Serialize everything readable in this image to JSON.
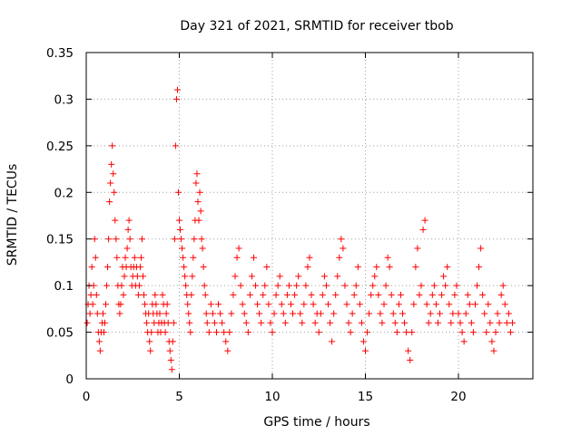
{
  "chart_data": {
    "type": "scatter",
    "title": "Day 321 of 2021, SRMTID for receiver tbob",
    "xlabel": "GPS time / hours",
    "ylabel": "SRMTID / TECUs",
    "xlim": [
      0,
      24
    ],
    "ylim": [
      0,
      0.35
    ],
    "xticks": [
      0,
      5,
      10,
      15,
      20
    ],
    "xtick_labels": [
      "0",
      "5",
      "10",
      "15",
      "20"
    ],
    "yticks": [
      0,
      0.05,
      0.1,
      0.15,
      0.2,
      0.25,
      0.3,
      0.35
    ],
    "ytick_labels": [
      "0",
      "0.05",
      "0.1",
      "0.15",
      "0.2",
      "0.25",
      "0.3",
      "0.35"
    ],
    "grid": true,
    "marker": "+",
    "color": "#ff0000",
    "series": [
      {
        "name": "SRMTID",
        "points": [
          [
            0.05,
            0.06
          ],
          [
            0.1,
            0.08
          ],
          [
            0.15,
            0.1
          ],
          [
            0.2,
            0.07
          ],
          [
            0.25,
            0.09
          ],
          [
            0.3,
            0.12
          ],
          [
            0.35,
            0.08
          ],
          [
            0.4,
            0.1
          ],
          [
            0.45,
            0.15
          ],
          [
            0.5,
            0.13
          ],
          [
            0.55,
            0.09
          ],
          [
            0.6,
            0.07
          ],
          [
            0.65,
            0.05
          ],
          [
            0.7,
            0.04
          ],
          [
            0.75,
            0.03
          ],
          [
            0.8,
            0.05
          ],
          [
            0.85,
            0.06
          ],
          [
            0.9,
            0.07
          ],
          [
            0.95,
            0.05
          ],
          [
            1.0,
            0.06
          ],
          [
            1.05,
            0.08
          ],
          [
            1.1,
            0.1
          ],
          [
            1.15,
            0.12
          ],
          [
            1.2,
            0.15
          ],
          [
            1.25,
            0.19
          ],
          [
            1.3,
            0.21
          ],
          [
            1.35,
            0.23
          ],
          [
            1.4,
            0.25
          ],
          [
            1.45,
            0.22
          ],
          [
            1.5,
            0.2
          ],
          [
            1.55,
            0.17
          ],
          [
            1.6,
            0.15
          ],
          [
            1.65,
            0.13
          ],
          [
            1.7,
            0.1
          ],
          [
            1.75,
            0.08
          ],
          [
            1.8,
            0.07
          ],
          [
            1.85,
            0.08
          ],
          [
            1.9,
            0.1
          ],
          [
            1.95,
            0.12
          ],
          [
            2.0,
            0.09
          ],
          [
            2.05,
            0.11
          ],
          [
            2.1,
            0.13
          ],
          [
            2.15,
            0.12
          ],
          [
            2.2,
            0.14
          ],
          [
            2.25,
            0.16
          ],
          [
            2.3,
            0.17
          ],
          [
            2.35,
            0.15
          ],
          [
            2.4,
            0.12
          ],
          [
            2.45,
            0.1
          ],
          [
            2.5,
            0.11
          ],
          [
            2.55,
            0.12
          ],
          [
            2.6,
            0.13
          ],
          [
            2.65,
            0.1
          ],
          [
            2.7,
            0.12
          ],
          [
            2.75,
            0.11
          ],
          [
            2.8,
            0.09
          ],
          [
            2.85,
            0.1
          ],
          [
            2.9,
            0.12
          ],
          [
            2.95,
            0.13
          ],
          [
            3.0,
            0.15
          ],
          [
            3.05,
            0.11
          ],
          [
            3.1,
            0.09
          ],
          [
            3.15,
            0.08
          ],
          [
            3.2,
            0.07
          ],
          [
            3.25,
            0.06
          ],
          [
            3.3,
            0.05
          ],
          [
            3.35,
            0.07
          ],
          [
            3.4,
            0.04
          ],
          [
            3.45,
            0.03
          ],
          [
            3.5,
            0.05
          ],
          [
            3.55,
            0.08
          ],
          [
            3.6,
            0.07
          ],
          [
            3.65,
            0.06
          ],
          [
            3.7,
            0.09
          ],
          [
            3.75,
            0.08
          ],
          [
            3.8,
            0.07
          ],
          [
            3.85,
            0.05
          ],
          [
            3.9,
            0.06
          ],
          [
            3.95,
            0.07
          ],
          [
            4.0,
            0.05
          ],
          [
            4.05,
            0.06
          ],
          [
            4.1,
            0.09
          ],
          [
            4.15,
            0.08
          ],
          [
            4.2,
            0.06
          ],
          [
            4.25,
            0.05
          ],
          [
            4.3,
            0.07
          ],
          [
            4.35,
            0.08
          ],
          [
            4.4,
            0.06
          ],
          [
            4.45,
            0.04
          ],
          [
            4.5,
            0.03
          ],
          [
            4.55,
            0.02
          ],
          [
            4.6,
            0.01
          ],
          [
            4.65,
            0.04
          ],
          [
            4.7,
            0.06
          ],
          [
            4.75,
            0.15
          ],
          [
            4.8,
            0.25
          ],
          [
            4.85,
            0.3
          ],
          [
            4.9,
            0.31
          ],
          [
            4.95,
            0.2
          ],
          [
            5.0,
            0.17
          ],
          [
            5.05,
            0.16
          ],
          [
            5.1,
            0.15
          ],
          [
            5.15,
            0.14
          ],
          [
            5.2,
            0.13
          ],
          [
            5.25,
            0.12
          ],
          [
            5.3,
            0.11
          ],
          [
            5.35,
            0.1
          ],
          [
            5.4,
            0.09
          ],
          [
            5.45,
            0.08
          ],
          [
            5.5,
            0.07
          ],
          [
            5.55,
            0.06
          ],
          [
            5.6,
            0.05
          ],
          [
            5.65,
            0.09
          ],
          [
            5.7,
            0.11
          ],
          [
            5.75,
            0.13
          ],
          [
            5.8,
            0.15
          ],
          [
            5.85,
            0.17
          ],
          [
            5.9,
            0.21
          ],
          [
            5.95,
            0.22
          ],
          [
            6.0,
            0.19
          ],
          [
            6.05,
            0.17
          ],
          [
            6.1,
            0.2
          ],
          [
            6.15,
            0.18
          ],
          [
            6.2,
            0.15
          ],
          [
            6.25,
            0.14
          ],
          [
            6.3,
            0.12
          ],
          [
            6.35,
            0.1
          ],
          [
            6.4,
            0.09
          ],
          [
            6.45,
            0.07
          ],
          [
            6.5,
            0.06
          ],
          [
            6.6,
            0.05
          ],
          [
            6.7,
            0.08
          ],
          [
            6.8,
            0.07
          ],
          [
            6.9,
            0.06
          ],
          [
            7.0,
            0.05
          ],
          [
            7.1,
            0.08
          ],
          [
            7.2,
            0.07
          ],
          [
            7.3,
            0.06
          ],
          [
            7.4,
            0.05
          ],
          [
            7.5,
            0.04
          ],
          [
            7.6,
            0.03
          ],
          [
            7.7,
            0.05
          ],
          [
            7.8,
            0.07
          ],
          [
            7.9,
            0.09
          ],
          [
            8.0,
            0.11
          ],
          [
            8.1,
            0.13
          ],
          [
            8.2,
            0.14
          ],
          [
            8.3,
            0.1
          ],
          [
            8.4,
            0.08
          ],
          [
            8.5,
            0.07
          ],
          [
            8.6,
            0.06
          ],
          [
            8.7,
            0.05
          ],
          [
            8.8,
            0.09
          ],
          [
            8.9,
            0.11
          ],
          [
            9.0,
            0.13
          ],
          [
            9.1,
            0.1
          ],
          [
            9.2,
            0.08
          ],
          [
            9.3,
            0.07
          ],
          [
            9.4,
            0.06
          ],
          [
            9.5,
            0.09
          ],
          [
            9.6,
            0.1
          ],
          [
            9.7,
            0.12
          ],
          [
            9.8,
            0.08
          ],
          [
            9.9,
            0.06
          ],
          [
            10.0,
            0.05
          ],
          [
            10.1,
            0.07
          ],
          [
            10.2,
            0.09
          ],
          [
            10.3,
            0.1
          ],
          [
            10.4,
            0.11
          ],
          [
            10.5,
            0.08
          ],
          [
            10.6,
            0.07
          ],
          [
            10.7,
            0.06
          ],
          [
            10.8,
            0.09
          ],
          [
            10.9,
            0.1
          ],
          [
            11.0,
            0.08
          ],
          [
            11.1,
            0.07
          ],
          [
            11.2,
            0.09
          ],
          [
            11.3,
            0.1
          ],
          [
            11.4,
            0.11
          ],
          [
            11.5,
            0.07
          ],
          [
            11.6,
            0.06
          ],
          [
            11.7,
            0.08
          ],
          [
            11.8,
            0.1
          ],
          [
            11.9,
            0.12
          ],
          [
            12.0,
            0.13
          ],
          [
            12.1,
            0.09
          ],
          [
            12.2,
            0.08
          ],
          [
            12.3,
            0.06
          ],
          [
            12.4,
            0.07
          ],
          [
            12.5,
            0.05
          ],
          [
            12.6,
            0.07
          ],
          [
            12.7,
            0.09
          ],
          [
            12.8,
            0.11
          ],
          [
            12.9,
            0.1
          ],
          [
            13.0,
            0.08
          ],
          [
            13.1,
            0.06
          ],
          [
            13.2,
            0.04
          ],
          [
            13.3,
            0.07
          ],
          [
            13.4,
            0.09
          ],
          [
            13.5,
            0.11
          ],
          [
            13.6,
            0.13
          ],
          [
            13.7,
            0.15
          ],
          [
            13.8,
            0.14
          ],
          [
            13.9,
            0.1
          ],
          [
            14.0,
            0.08
          ],
          [
            14.1,
            0.06
          ],
          [
            14.2,
            0.05
          ],
          [
            14.3,
            0.07
          ],
          [
            14.4,
            0.09
          ],
          [
            14.5,
            0.1
          ],
          [
            14.6,
            0.12
          ],
          [
            14.7,
            0.08
          ],
          [
            14.8,
            0.06
          ],
          [
            14.9,
            0.04
          ],
          [
            15.0,
            0.03
          ],
          [
            15.1,
            0.05
          ],
          [
            15.2,
            0.07
          ],
          [
            15.3,
            0.09
          ],
          [
            15.4,
            0.1
          ],
          [
            15.5,
            0.11
          ],
          [
            15.6,
            0.12
          ],
          [
            15.7,
            0.09
          ],
          [
            15.8,
            0.07
          ],
          [
            15.9,
            0.06
          ],
          [
            16.0,
            0.08
          ],
          [
            16.1,
            0.1
          ],
          [
            16.2,
            0.13
          ],
          [
            16.3,
            0.12
          ],
          [
            16.4,
            0.09
          ],
          [
            16.5,
            0.07
          ],
          [
            16.6,
            0.06
          ],
          [
            16.7,
            0.05
          ],
          [
            16.8,
            0.08
          ],
          [
            16.9,
            0.09
          ],
          [
            17.0,
            0.07
          ],
          [
            17.1,
            0.06
          ],
          [
            17.2,
            0.05
          ],
          [
            17.3,
            0.03
          ],
          [
            17.4,
            0.02
          ],
          [
            17.5,
            0.05
          ],
          [
            17.6,
            0.08
          ],
          [
            17.7,
            0.12
          ],
          [
            17.8,
            0.14
          ],
          [
            17.9,
            0.09
          ],
          [
            18.0,
            0.1
          ],
          [
            18.1,
            0.16
          ],
          [
            18.2,
            0.17
          ],
          [
            18.3,
            0.08
          ],
          [
            18.4,
            0.06
          ],
          [
            18.5,
            0.07
          ],
          [
            18.6,
            0.09
          ],
          [
            18.7,
            0.1
          ],
          [
            18.8,
            0.08
          ],
          [
            18.9,
            0.06
          ],
          [
            19.0,
            0.07
          ],
          [
            19.1,
            0.09
          ],
          [
            19.2,
            0.11
          ],
          [
            19.3,
            0.1
          ],
          [
            19.4,
            0.12
          ],
          [
            19.5,
            0.08
          ],
          [
            19.6,
            0.06
          ],
          [
            19.7,
            0.07
          ],
          [
            19.8,
            0.09
          ],
          [
            19.9,
            0.1
          ],
          [
            20.0,
            0.07
          ],
          [
            20.1,
            0.06
          ],
          [
            20.2,
            0.05
          ],
          [
            20.3,
            0.04
          ],
          [
            20.4,
            0.07
          ],
          [
            20.5,
            0.09
          ],
          [
            20.6,
            0.08
          ],
          [
            20.7,
            0.06
          ],
          [
            20.8,
            0.05
          ],
          [
            20.9,
            0.08
          ],
          [
            21.0,
            0.1
          ],
          [
            21.1,
            0.12
          ],
          [
            21.2,
            0.14
          ],
          [
            21.3,
            0.09
          ],
          [
            21.4,
            0.07
          ],
          [
            21.5,
            0.05
          ],
          [
            21.6,
            0.08
          ],
          [
            21.7,
            0.06
          ],
          [
            21.8,
            0.04
          ],
          [
            21.9,
            0.03
          ],
          [
            22.0,
            0.05
          ],
          [
            22.1,
            0.07
          ],
          [
            22.2,
            0.06
          ],
          [
            22.3,
            0.09
          ],
          [
            22.4,
            0.1
          ],
          [
            22.5,
            0.08
          ],
          [
            22.6,
            0.06
          ],
          [
            22.7,
            0.07
          ],
          [
            22.8,
            0.05
          ],
          [
            22.9,
            0.06
          ]
        ]
      }
    ]
  }
}
